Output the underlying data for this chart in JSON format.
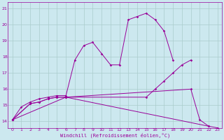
{
  "bg_color": "#cce8ef",
  "grid_color": "#aacccc",
  "line_color": "#990099",
  "xlabel": "Windchill (Refroidissement éolien,°C)",
  "yticks": [
    14,
    15,
    16,
    17,
    18,
    19,
    20,
    21
  ],
  "xticks": [
    0,
    1,
    2,
    3,
    4,
    5,
    6,
    7,
    8,
    9,
    10,
    11,
    12,
    13,
    14,
    15,
    16,
    17,
    18,
    19,
    20,
    21,
    22,
    23
  ],
  "xlim": [
    -0.5,
    23.5
  ],
  "ylim": [
    13.6,
    21.4
  ],
  "series": [
    {
      "x": [
        0,
        1,
        2,
        3,
        4,
        5,
        6,
        7,
        8,
        9,
        10,
        11,
        12,
        13,
        14,
        15,
        16,
        17,
        18
      ],
      "y": [
        14.1,
        14.9,
        15.2,
        15.4,
        15.5,
        15.6,
        15.6,
        17.8,
        18.7,
        18.9,
        18.2,
        17.5,
        17.5,
        20.3,
        20.5,
        20.7,
        20.3,
        19.6,
        17.8
      ]
    },
    {
      "x": [
        0,
        2,
        3,
        4,
        5,
        6,
        15,
        16,
        17,
        18,
        19,
        20
      ],
      "y": [
        14.1,
        15.1,
        15.2,
        15.4,
        15.5,
        15.5,
        15.5,
        16.0,
        16.5,
        17.0,
        17.5,
        17.8
      ]
    },
    {
      "x": [
        0,
        2,
        3,
        4,
        5,
        6,
        20,
        21,
        22
      ],
      "y": [
        14.1,
        15.1,
        15.2,
        15.4,
        15.5,
        15.5,
        16.0,
        14.1,
        13.7
      ]
    },
    {
      "x": [
        0,
        6,
        22,
        23
      ],
      "y": [
        14.1,
        15.5,
        13.7,
        13.6
      ]
    }
  ]
}
